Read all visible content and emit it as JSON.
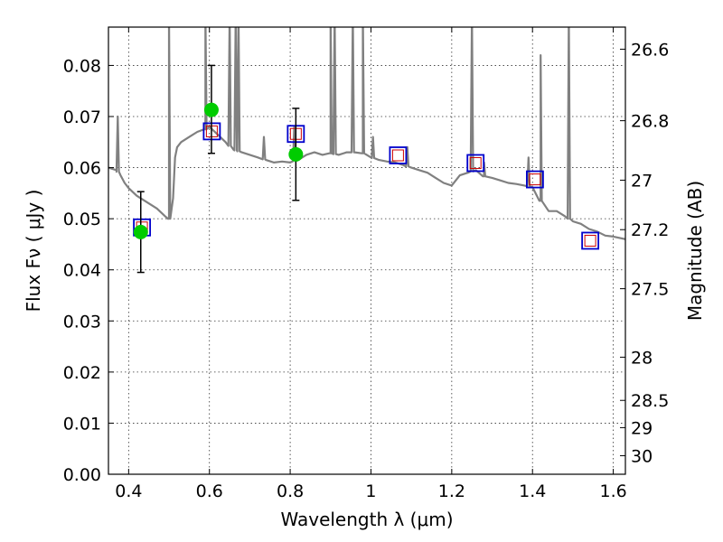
{
  "chart_data": {
    "type": "scatter",
    "xlabel": "Wavelength  λ (μm)",
    "ylabel": "Flux  Fν  ( μJy )",
    "ylabel_right": "Magnitude (AB)",
    "xlim": [
      0.35,
      1.63
    ],
    "ylim": [
      0.0,
      0.0875
    ],
    "x_ticks": [
      0.4,
      0.6,
      0.8,
      1.0,
      1.2,
      1.4,
      1.6
    ],
    "x_tick_labels": [
      "0.4",
      "0.6",
      "0.8",
      "1",
      "1.2",
      "1.4",
      "1.6"
    ],
    "y_ticks": [
      0.0,
      0.01,
      0.02,
      0.03,
      0.04,
      0.05,
      0.06,
      0.07,
      0.08
    ],
    "y_tick_labels": [
      "0.00",
      "0.01",
      "0.02",
      "0.03",
      "0.04",
      "0.05",
      "0.06",
      "0.07",
      "0.08"
    ],
    "mag_ticks": [
      26.6,
      26.8,
      27.0,
      27.2,
      27.5,
      28.0,
      28.5,
      29.0,
      30.0
    ],
    "mag_tick_labels": [
      "26.6",
      "26.8",
      "27",
      "27.2",
      "27.5",
      "28",
      "28.5",
      "29",
      "30"
    ],
    "grid": true,
    "colors": {
      "model": "#808080",
      "observed": "#00cc00",
      "errorbar": "#000000",
      "synthetic_box": "#0000cc",
      "predicted_box": "#cc0000"
    },
    "model_spectrum": {
      "x": [
        0.35,
        0.37,
        0.38,
        0.39,
        0.4,
        0.42,
        0.45,
        0.47,
        0.49,
        0.5,
        0.51,
        0.515,
        0.52,
        0.53,
        0.55,
        0.57,
        0.59,
        0.6,
        0.62,
        0.64,
        0.66,
        0.68,
        0.7,
        0.72,
        0.74,
        0.76,
        0.78,
        0.8,
        0.82,
        0.84,
        0.86,
        0.88,
        0.9,
        0.92,
        0.94,
        0.96,
        0.98,
        1.0,
        1.02,
        1.04,
        1.06,
        1.08,
        1.1,
        1.12,
        1.14,
        1.16,
        1.18,
        1.2,
        1.22,
        1.24,
        1.26,
        1.28,
        1.3,
        1.32,
        1.34,
        1.36,
        1.38,
        1.4,
        1.42,
        1.44,
        1.46,
        1.48,
        1.5,
        1.52,
        1.54,
        1.56,
        1.58,
        1.6,
        1.63
      ],
      "y": [
        0.06,
        0.0595,
        0.0585,
        0.057,
        0.056,
        0.0545,
        0.053,
        0.052,
        0.0505,
        0.05,
        0.054,
        0.062,
        0.064,
        0.065,
        0.066,
        0.067,
        0.0675,
        0.068,
        0.0665,
        0.065,
        0.0635,
        0.063,
        0.0625,
        0.062,
        0.0615,
        0.061,
        0.0612,
        0.061,
        0.0615,
        0.0625,
        0.063,
        0.0625,
        0.0628,
        0.0625,
        0.063,
        0.063,
        0.0628,
        0.062,
        0.0615,
        0.0612,
        0.061,
        0.0605,
        0.06,
        0.0595,
        0.059,
        0.058,
        0.057,
        0.0565,
        0.0585,
        0.059,
        0.0595,
        0.0583,
        0.058,
        0.0575,
        0.057,
        0.0568,
        0.0565,
        0.0562,
        0.0535,
        0.0515,
        0.0515,
        0.0505,
        0.0495,
        0.049,
        0.048,
        0.0475,
        0.0467,
        0.0465,
        0.046
      ]
    },
    "emission_lines": [
      {
        "x": 0.373,
        "peak": 0.07
      },
      {
        "x": 0.5,
        "peak": 0.09
      },
      {
        "x": 0.59,
        "peak": 0.09
      },
      {
        "x": 0.65,
        "peak": 0.09
      },
      {
        "x": 0.665,
        "peak": 0.09
      },
      {
        "x": 0.672,
        "peak": 0.09
      },
      {
        "x": 0.735,
        "peak": 0.066
      },
      {
        "x": 0.81,
        "peak": 0.068
      },
      {
        "x": 0.9,
        "peak": 0.09
      },
      {
        "x": 0.91,
        "peak": 0.09
      },
      {
        "x": 0.955,
        "peak": 0.09
      },
      {
        "x": 0.98,
        "peak": 0.09
      },
      {
        "x": 1.005,
        "peak": 0.066
      },
      {
        "x": 1.09,
        "peak": 0.064
      },
      {
        "x": 1.25,
        "peak": 0.09
      },
      {
        "x": 1.28,
        "peak": 0.061
      },
      {
        "x": 1.39,
        "peak": 0.062
      },
      {
        "x": 1.42,
        "peak": 0.082
      },
      {
        "x": 1.49,
        "peak": 0.09
      }
    ],
    "observed_points": [
      {
        "x": 0.43,
        "y": 0.0474,
        "yerr_low": 0.0079,
        "yerr_high": 0.0079
      },
      {
        "x": 0.605,
        "y": 0.0713,
        "yerr_low": 0.0085,
        "yerr_high": 0.0087
      },
      {
        "x": 0.814,
        "y": 0.0626,
        "yerr_low": 0.009,
        "yerr_high": 0.009
      }
    ],
    "synthetic_photometry": [
      {
        "x": 0.433,
        "y": 0.0483
      },
      {
        "x": 0.606,
        "y": 0.0671
      },
      {
        "x": 0.814,
        "y": 0.0666
      },
      {
        "x": 1.067,
        "y": 0.0624
      },
      {
        "x": 1.259,
        "y": 0.0609
      },
      {
        "x": 1.406,
        "y": 0.0577
      },
      {
        "x": 1.543,
        "y": 0.0457
      }
    ]
  }
}
